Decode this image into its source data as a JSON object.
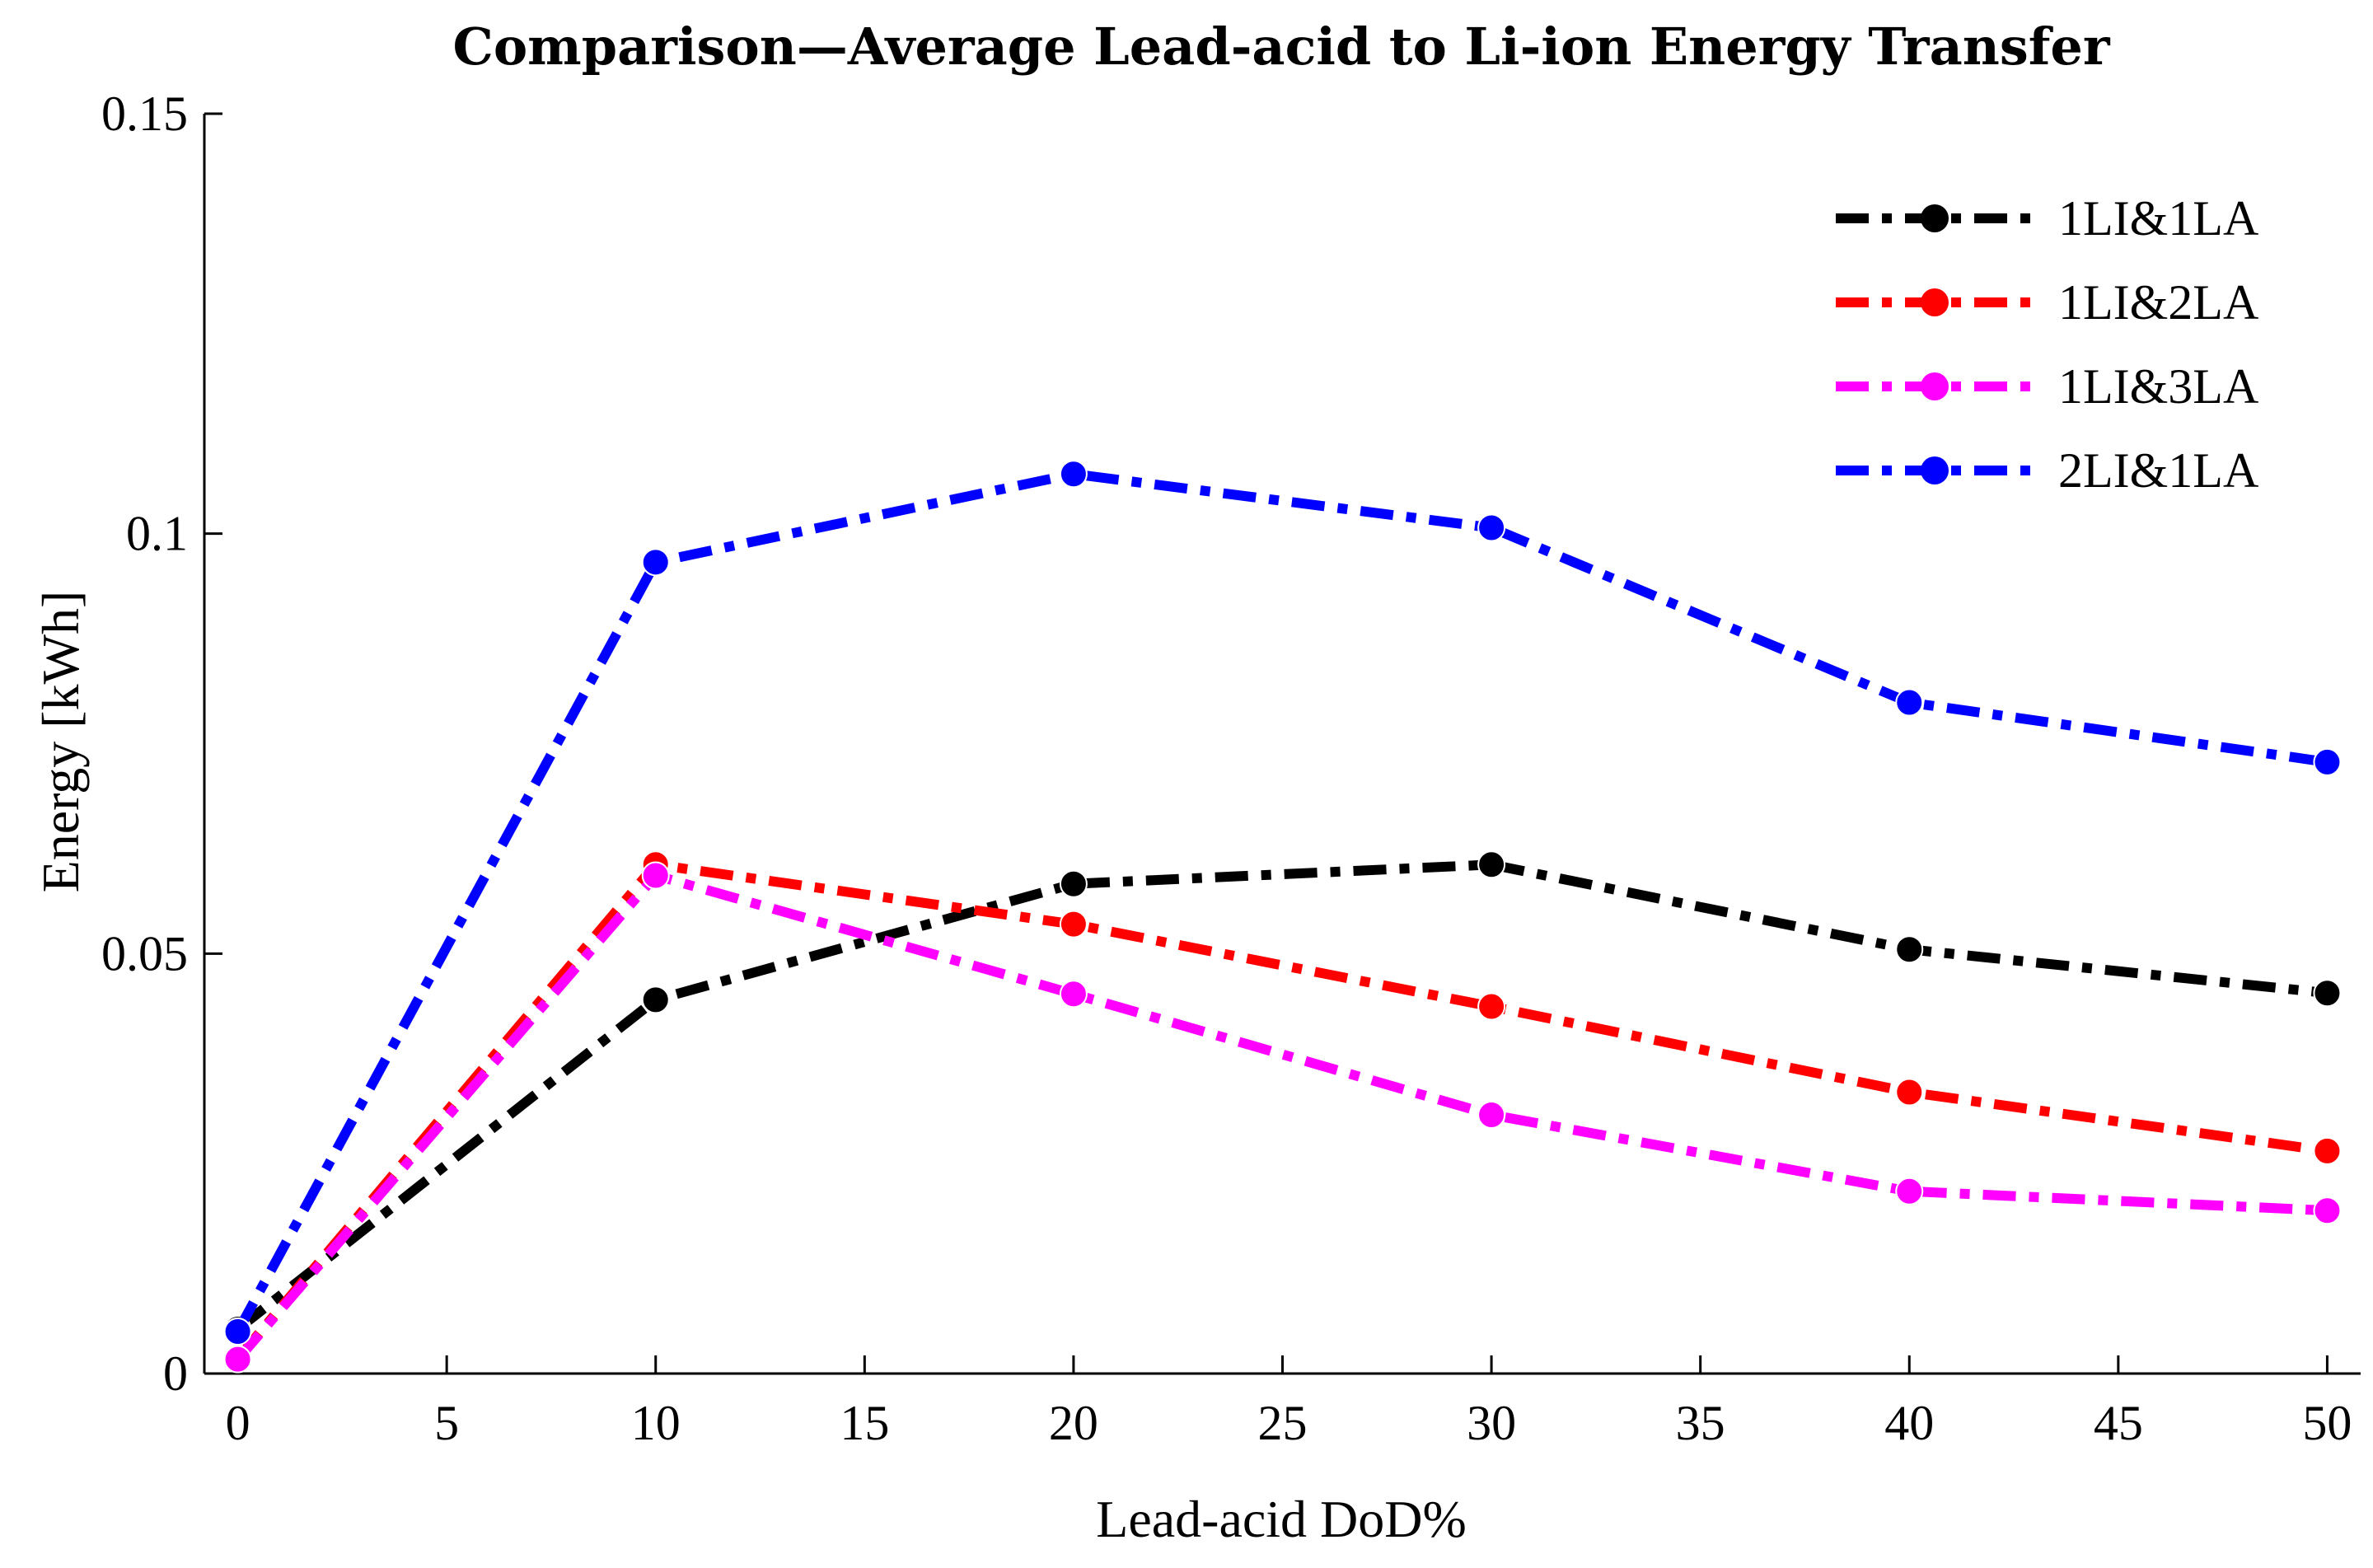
{
  "chart_data": {
    "type": "line",
    "title": "Comparison—Average Lead-acid to Li-ion Energy Transfer",
    "xlabel": "Lead-acid DoD%",
    "ylabel": "Energy [kWh]",
    "xlim": [
      -0.8,
      50.8
    ],
    "ylim": [
      0,
      0.15
    ],
    "xticks": [
      0,
      5,
      10,
      15,
      20,
      25,
      30,
      35,
      40,
      45,
      50
    ],
    "xtick_labels": [
      "0",
      "5",
      "10",
      "15",
      "20",
      "25",
      "30",
      "35",
      "40",
      "45",
      "50"
    ],
    "yticks": [
      0,
      0.05,
      0.1,
      0.15
    ],
    "ytick_labels": [
      "0",
      "0.05",
      "0.1",
      "0.15"
    ],
    "grid": false,
    "legend_position": "top-right",
    "x": [
      0,
      10,
      20,
      30,
      40,
      50
    ],
    "series": [
      {
        "name": "1LI&1LA",
        "color": "#000000",
        "values": [
          0.0053,
          0.0445,
          0.0583,
          0.0606,
          0.0505,
          0.0453
        ]
      },
      {
        "name": "1LI&2LA",
        "color": "#ff0000",
        "values": [
          0.0018,
          0.0606,
          0.0535,
          0.0437,
          0.0335,
          0.0265
        ]
      },
      {
        "name": "1LI&3LA",
        "color": "#ff00ff",
        "values": [
          0.0017,
          0.0593,
          0.0452,
          0.0308,
          0.0217,
          0.0194
        ]
      },
      {
        "name": "2LI&1LA",
        "color": "#0000ff",
        "values": [
          0.005,
          0.0966,
          0.1071,
          0.1007,
          0.0799,
          0.0728
        ]
      }
    ]
  }
}
